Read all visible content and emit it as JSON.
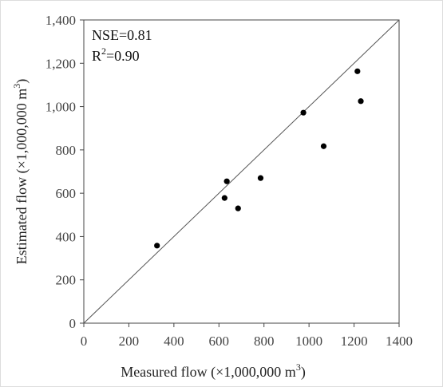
{
  "chart_data": {
    "type": "scatter",
    "xlabel": "Measured flow (×1,000,000 m",
    "xlabel_sup": "3",
    "xlabel_end": ")",
    "ylabel": "Estimated flow (×1,000,000 m",
    "ylabel_sup": "3",
    "ylabel_end": ")",
    "xlim": [
      0,
      1400
    ],
    "ylim": [
      0,
      1400
    ],
    "x_ticks": [
      0,
      200,
      400,
      600,
      800,
      1000,
      1200,
      1400
    ],
    "x_tick_labels": [
      "0",
      "200",
      "400",
      "600",
      "800",
      "1000",
      "1200",
      "1400"
    ],
    "y_ticks": [
      0,
      200,
      400,
      600,
      800,
      1000,
      1200,
      1400
    ],
    "y_tick_labels": [
      "0",
      "200",
      "400",
      "600",
      "800",
      "1,000",
      "1,200",
      "1,400"
    ],
    "grid": false,
    "reference_line": "1:1",
    "annotations": {
      "nse": "NSE=0.81",
      "r2_base": "R",
      "r2_sup": "2",
      "r2_value": "=0.90"
    },
    "points": [
      {
        "x": 325,
        "y": 358
      },
      {
        "x": 625,
        "y": 578
      },
      {
        "x": 635,
        "y": 655
      },
      {
        "x": 685,
        "y": 530
      },
      {
        "x": 785,
        "y": 670
      },
      {
        "x": 975,
        "y": 972
      },
      {
        "x": 1065,
        "y": 817
      },
      {
        "x": 1215,
        "y": 1163
      },
      {
        "x": 1230,
        "y": 1025
      }
    ]
  }
}
